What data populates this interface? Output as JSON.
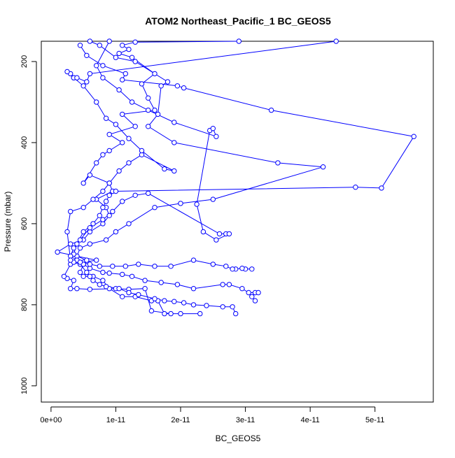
{
  "chart_data": {
    "type": "line",
    "title": "ATOM2 Northeast_Pacific_1 BC_GEOS5",
    "xlabel": "BC_GEOS5",
    "ylabel": "Pressure (mbar)",
    "xlim": [
      -1.5e-12,
      5.9e-11
    ],
    "ylim": [
      1040,
      150
    ],
    "y_reversed": true,
    "x_ticks": [
      {
        "value": 0,
        "label": "0e+00"
      },
      {
        "value": 1e-11,
        "label": "1e-11"
      },
      {
        "value": 2e-11,
        "label": "2e-11"
      },
      {
        "value": 3e-11,
        "label": "3e-11"
      },
      {
        "value": 4e-11,
        "label": "4e-11"
      },
      {
        "value": 5e-11,
        "label": "5e-11"
      }
    ],
    "y_ticks": [
      {
        "value": 200,
        "label": "200"
      },
      {
        "value": 400,
        "label": "400"
      },
      {
        "value": 600,
        "label": "600"
      },
      {
        "value": 800,
        "label": "800"
      },
      {
        "value": 1000,
        "label": "1000"
      }
    ],
    "grid": false,
    "legend": "none",
    "series_color": "#0000ff",
    "marker": "open-circle",
    "series": [
      {
        "points": [
          [
            1.85e-11,
            822
          ],
          [
            1.55e-11,
            815
          ],
          [
            1.45e-11,
            760
          ],
          [
            1.2e-11,
            762
          ],
          [
            1e-11,
            760
          ],
          [
            6e-12,
            762
          ],
          [
            4e-12,
            760
          ],
          [
            3e-12,
            760
          ],
          [
            3.5e-12,
            740
          ],
          [
            2.5e-12,
            735
          ],
          [
            2e-12,
            730
          ],
          [
            3e-12,
            700
          ],
          [
            5e-12,
            695
          ],
          [
            7e-12,
            690
          ],
          [
            1e-12,
            670
          ],
          [
            3e-12,
            650
          ],
          [
            5e-12,
            640
          ],
          [
            6e-12,
            620
          ],
          [
            8e-12,
            600
          ],
          [
            9e-12,
            580
          ],
          [
            8.5e-12,
            560
          ],
          [
            7e-12,
            540
          ],
          [
            9.5e-12,
            520
          ],
          [
            9e-12,
            500
          ],
          [
            6e-12,
            480
          ],
          [
            5e-12,
            500
          ],
          [
            7e-12,
            450
          ],
          [
            8e-12,
            430
          ],
          [
            9e-12,
            420
          ],
          [
            1.1e-11,
            400
          ],
          [
            9e-12,
            380
          ],
          [
            1.3e-11,
            360
          ],
          [
            1.1e-11,
            330
          ],
          [
            1.6e-11,
            320
          ],
          [
            1.5e-11,
            290
          ],
          [
            1.4e-11,
            255
          ],
          [
            1.6e-11,
            230
          ],
          [
            1.25e-11,
            190
          ],
          [
            1.05e-11,
            180
          ],
          [
            1.2e-11,
            170
          ],
          [
            1.1e-11,
            160
          ],
          [
            1.3e-11,
            152
          ],
          [
            2.9e-11,
            150
          ]
        ]
      },
      {
        "points": [
          [
            2.3e-11,
            822
          ],
          [
            2e-11,
            822
          ],
          [
            1.75e-11,
            822
          ],
          [
            1.65e-11,
            790
          ],
          [
            1.55e-11,
            790
          ],
          [
            1.3e-11,
            780
          ],
          [
            1.1e-11,
            780
          ],
          [
            9e-12,
            760
          ],
          [
            8e-12,
            740
          ],
          [
            6.5e-12,
            730
          ],
          [
            5e-12,
            730
          ],
          [
            4.5e-12,
            720
          ],
          [
            5e-12,
            700
          ],
          [
            5.5e-12,
            690
          ],
          [
            4e-12,
            680
          ],
          [
            4.5e-12,
            660
          ],
          [
            6e-12,
            650
          ],
          [
            8.5e-12,
            640
          ],
          [
            1e-11,
            620
          ],
          [
            1.2e-11,
            600
          ],
          [
            1.6e-11,
            560
          ],
          [
            2e-11,
            550
          ],
          [
            2.5e-11,
            540
          ],
          [
            4.2e-11,
            460
          ],
          [
            3.5e-11,
            450
          ],
          [
            1.9e-11,
            400
          ],
          [
            1.5e-11,
            360
          ],
          [
            1.65e-11,
            330
          ],
          [
            1.7e-11,
            260
          ],
          [
            1.8e-11,
            250
          ],
          [
            1.3e-11,
            200
          ],
          [
            1e-11,
            190
          ],
          [
            7.5e-12,
            160
          ],
          [
            6e-12,
            150
          ]
        ]
      },
      {
        "points": [
          [
            2.85e-11,
            822
          ],
          [
            2.8e-11,
            805
          ],
          [
            2.65e-11,
            805
          ],
          [
            2.4e-11,
            802
          ],
          [
            2.2e-11,
            800
          ],
          [
            2.05e-11,
            795
          ],
          [
            1.9e-11,
            792
          ],
          [
            1.75e-11,
            790
          ],
          [
            1.6e-11,
            785
          ],
          [
            1.35e-11,
            775
          ],
          [
            1.2e-11,
            770
          ],
          [
            1.05e-11,
            760
          ],
          [
            8.5e-12,
            755
          ],
          [
            7.5e-12,
            750
          ],
          [
            6.5e-12,
            740
          ],
          [
            6e-12,
            730
          ],
          [
            5.5e-12,
            720
          ],
          [
            4.5e-12,
            700
          ],
          [
            4e-12,
            690
          ],
          [
            3.5e-12,
            675
          ],
          [
            4e-12,
            650
          ],
          [
            5e-12,
            620
          ],
          [
            6.5e-12,
            600
          ],
          [
            7.5e-12,
            580
          ],
          [
            8e-12,
            560
          ],
          [
            8.5e-12,
            545
          ],
          [
            9e-12,
            530
          ],
          [
            1e-11,
            520
          ],
          [
            4.7e-11,
            510
          ],
          [
            5.1e-11,
            512
          ],
          [
            5.6e-11,
            385
          ],
          [
            3.4e-11,
            320
          ],
          [
            2.05e-11,
            265
          ],
          [
            1.95e-11,
            260
          ],
          [
            1.1e-11,
            245
          ],
          [
            1.15e-11,
            230
          ],
          [
            8e-12,
            210
          ],
          [
            5.5e-12,
            185
          ],
          [
            4.5e-12,
            160
          ]
        ]
      },
      {
        "points": [
          [
            3.15e-11,
            790
          ],
          [
            3.1e-11,
            780
          ],
          [
            3.15e-11,
            770
          ],
          [
            3.2e-11,
            770
          ],
          [
            3.05e-11,
            770
          ],
          [
            2.95e-11,
            760
          ],
          [
            2.75e-11,
            750
          ],
          [
            2.65e-11,
            750
          ],
          [
            2.2e-11,
            760
          ],
          [
            1.95e-11,
            750
          ],
          [
            1.7e-11,
            745
          ],
          [
            1.45e-11,
            740
          ],
          [
            1.25e-11,
            730
          ],
          [
            1.1e-11,
            725
          ],
          [
            9e-12,
            722
          ],
          [
            8e-12,
            720
          ],
          [
            6e-12,
            710
          ],
          [
            5e-12,
            700
          ],
          [
            4e-12,
            690
          ],
          [
            3e-12,
            680
          ],
          [
            3.5e-12,
            660
          ],
          [
            4.5e-12,
            640
          ],
          [
            6e-12,
            610
          ],
          [
            8e-12,
            590
          ],
          [
            9.5e-12,
            570
          ],
          [
            1.1e-11,
            545
          ],
          [
            1.3e-11,
            530
          ],
          [
            1.5e-11,
            525
          ],
          [
            2.6e-11,
            625
          ],
          [
            2.7e-11,
            625
          ],
          [
            2.75e-11,
            625
          ],
          [
            2.55e-11,
            640
          ],
          [
            2.35e-11,
            620
          ],
          [
            2.25e-11,
            552
          ],
          [
            2.45e-11,
            370
          ],
          [
            2.5e-11,
            365
          ],
          [
            2.55e-11,
            385
          ],
          [
            1.9e-11,
            350
          ],
          [
            1.5e-11,
            320
          ],
          [
            1.25e-11,
            300
          ],
          [
            1.05e-11,
            270
          ],
          [
            8e-12,
            240
          ],
          [
            7e-12,
            210
          ],
          [
            9e-12,
            150
          ]
        ]
      },
      {
        "points": [
          [
            3.1e-11,
            712
          ],
          [
            3e-11,
            712
          ],
          [
            2.95e-11,
            710
          ],
          [
            2.85e-11,
            712
          ],
          [
            2.8e-11,
            712
          ],
          [
            2.7e-11,
            705
          ],
          [
            2.5e-11,
            700
          ],
          [
            2.2e-11,
            690
          ],
          [
            1.85e-11,
            705
          ],
          [
            1.6e-11,
            705
          ],
          [
            1.35e-11,
            700
          ],
          [
            1.15e-11,
            705
          ],
          [
            9.5e-12,
            705
          ],
          [
            7.5e-12,
            705
          ],
          [
            6e-12,
            700
          ],
          [
            4.5e-12,
            695
          ],
          [
            3.5e-12,
            695
          ],
          [
            3e-12,
            690
          ],
          [
            2.5e-12,
            620
          ],
          [
            3e-12,
            570
          ],
          [
            5e-12,
            560
          ],
          [
            6.5e-12,
            540
          ],
          [
            8e-12,
            520
          ],
          [
            9e-12,
            500
          ],
          [
            1.05e-11,
            470
          ],
          [
            1.2e-11,
            450
          ],
          [
            1.4e-11,
            430
          ],
          [
            1.9e-11,
            470
          ],
          [
            1.75e-11,
            465
          ],
          [
            1.4e-11,
            420
          ],
          [
            1.2e-11,
            390
          ],
          [
            1e-11,
            355
          ],
          [
            8.5e-12,
            340
          ],
          [
            7e-12,
            300
          ],
          [
            5e-12,
            260
          ],
          [
            3.5e-12,
            240
          ],
          [
            3e-12,
            230
          ],
          [
            2.5e-12,
            225
          ],
          [
            3.5e-12,
            240
          ],
          [
            4e-12,
            240
          ],
          [
            5.5e-12,
            250
          ],
          [
            6e-12,
            230
          ],
          [
            4.4e-11,
            150
          ]
        ]
      }
    ]
  }
}
